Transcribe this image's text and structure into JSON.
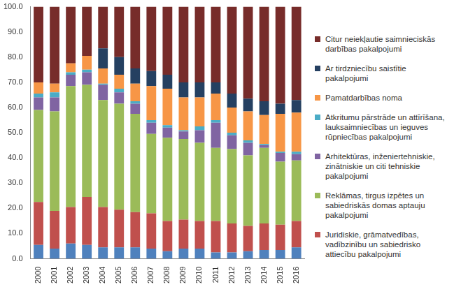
{
  "chart_data": {
    "type": "bar",
    "stacked": true,
    "grid": false,
    "legend": "right",
    "categories": [
      "2000",
      "2001",
      "2002",
      "2003",
      "2004",
      "2005",
      "2006",
      "2007",
      "2008",
      "2009",
      "2010",
      "2011",
      "2012",
      "2013",
      "2014",
      "2015",
      "2016"
    ],
    "ylim": [
      0,
      100
    ],
    "yticks": [
      {
        "value": 0,
        "label": "0.0"
      },
      {
        "value": 10,
        "label": "10.0"
      },
      {
        "value": 20,
        "label": "20.0"
      },
      {
        "value": 30,
        "label": "30.0"
      },
      {
        "value": 40,
        "label": "40.0"
      },
      {
        "value": 50,
        "label": "50.0"
      },
      {
        "value": 60,
        "label": "60.0"
      },
      {
        "value": 70,
        "label": "70.0"
      },
      {
        "value": 80,
        "label": "80.0"
      },
      {
        "value": 90,
        "label": "90.0"
      },
      {
        "value": 100,
        "label": "100.0"
      }
    ],
    "series": [
      {
        "name": null,
        "color": "#4f81bd",
        "values": [
          5.5,
          4,
          6,
          5.5,
          4.5,
          4.5,
          4.5,
          4,
          3,
          4,
          4,
          2.5,
          2.5,
          3,
          3.5,
          3.5,
          4.5
        ]
      },
      {
        "name": "Juridiskie, grāmatvedības, vadībzinību un sabiedrisko attiecību pakalpojumi",
        "color": "#c0504d",
        "values": [
          17,
          15,
          14.5,
          19,
          16,
          15,
          14,
          14,
          12,
          11.5,
          11,
          12.5,
          11.5,
          10,
          10.5,
          10,
          10.5
        ]
      },
      {
        "name": "Reklāmas, tirgus izpētes un sabiedriskās domas aptauju pakalpojumi",
        "color": "#9bbb59",
        "values": [
          36.5,
          39.5,
          48,
          44.5,
          42.5,
          42,
          39,
          31.5,
          33,
          32,
          31,
          29,
          29.5,
          28,
          30,
          25,
          24
        ]
      },
      {
        "name": "Arhitektūras, inženiertehniskie, zinātniskie un citi tehniskie pakalpojumi",
        "color": "#8064a2",
        "values": [
          5,
          5.5,
          4.5,
          5,
          6,
          4.5,
          4,
          4.5,
          4,
          3,
          5,
          10,
          5.5,
          5,
          1,
          3.5,
          2.5
        ]
      },
      {
        "name": "Atkritumu pārstrāde un attīrīšana, lauksaimniecības un ieguves rūpniecības pakalpojumi",
        "color": "#4bacc6",
        "values": [
          1.5,
          2,
          1,
          1,
          0.5,
          1.5,
          1,
          1,
          1,
          0.5,
          1.5,
          1,
          1,
          1,
          0.5,
          0.5,
          1
        ]
      },
      {
        "name": "Pamatdarbības noma",
        "color": "#f79646",
        "values": [
          4.5,
          3.5,
          3.5,
          5.5,
          6,
          5.5,
          7,
          13.5,
          14.5,
          13,
          11.5,
          10.5,
          10,
          11.5,
          11.5,
          15,
          15.5
        ]
      },
      {
        "name": "Ar tirdzniecību saistītie pakalpojumi",
        "color": "#254061",
        "values": [
          0,
          0,
          0,
          0,
          8,
          7,
          6,
          6,
          5.5,
          6,
          6,
          4.5,
          5.5,
          5,
          5.5,
          4,
          5
        ]
      },
      {
        "name": "Citur neiekļautie saimnieciskās darbības pakalpojumi",
        "color": "#772c2a",
        "values": [
          30,
          30.5,
          22.5,
          19.5,
          16.5,
          20,
          24.5,
          25.5,
          27,
          30,
          30,
          30,
          34.5,
          36.5,
          37.5,
          38.5,
          37
        ]
      }
    ]
  }
}
